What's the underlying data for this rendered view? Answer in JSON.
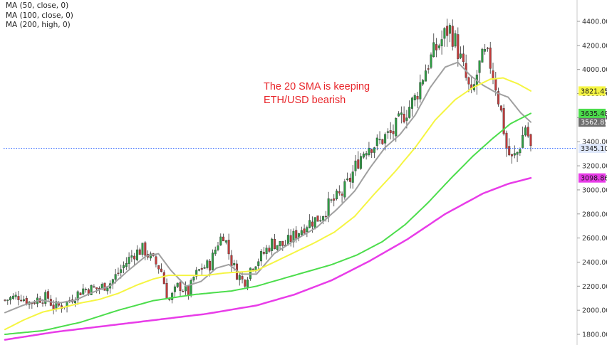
{
  "legend": [
    "MA (50, close, 0)",
    "MA (100, close, 0)",
    "MA (200, high, 0)"
  ],
  "annotation": {
    "line1": "The 20 SMA is keeping",
    "line2": "ETH/USD bearish"
  },
  "chart_data": {
    "type": "line",
    "y_axis": {
      "position": "right",
      "ylim": [
        1750,
        4500
      ],
      "ticks": [
        1800,
        2000,
        2200,
        2400,
        2600,
        2800,
        3000,
        3200,
        3400,
        3600,
        3800,
        4000,
        4200,
        4400
      ]
    },
    "grid": false,
    "price_line": {
      "value": 3345.1,
      "label": "3345.10",
      "color": "#2962ff"
    },
    "candles": {
      "up_color": "#2e9e44",
      "down_color": "#c23b3b",
      "count": 196,
      "close_path": [
        [
          0,
          2085
        ],
        [
          12,
          2120
        ],
        [
          20,
          2060
        ],
        [
          26,
          2095
        ],
        [
          34,
          2110
        ],
        [
          38,
          2030
        ],
        [
          46,
          2040
        ],
        [
          55,
          2115
        ],
        [
          62,
          2175
        ],
        [
          74,
          2180
        ],
        [
          84,
          2230
        ],
        [
          93,
          2350
        ],
        [
          102,
          2470
        ],
        [
          110,
          2510
        ],
        [
          116,
          2430
        ],
        [
          124,
          2340
        ],
        [
          130,
          2070
        ],
        [
          138,
          2210
        ],
        [
          146,
          2140
        ],
        [
          150,
          2270
        ],
        [
          156,
          2350
        ],
        [
          163,
          2380
        ],
        [
          169,
          2560
        ],
        [
          174,
          2640
        ],
        [
          179,
          2430
        ],
        [
          184,
          2310
        ],
        [
          190,
          2230
        ],
        [
          196,
          2370
        ],
        [
          204,
          2450
        ],
        [
          212,
          2560
        ],
        [
          222,
          2540
        ],
        [
          232,
          2640
        ],
        [
          240,
          2720
        ],
        [
          250,
          2770
        ],
        [
          258,
          2880
        ],
        [
          268,
          2970
        ],
        [
          274,
          3080
        ],
        [
          281,
          3250
        ],
        [
          288,
          3370
        ],
        [
          296,
          3380
        ],
        [
          302,
          3440
        ],
        [
          308,
          3470
        ],
        [
          316,
          3610
        ],
        [
          326,
          3760
        ],
        [
          334,
          4000
        ],
        [
          342,
          4160
        ],
        [
          348,
          4260
        ],
        [
          353,
          4350
        ],
        [
          358,
          4230
        ],
        [
          362,
          4090
        ],
        [
          366,
          3940
        ],
        [
          371,
          3760
        ],
        [
          376,
          4000
        ],
        [
          381,
          4120
        ],
        [
          385,
          4080
        ],
        [
          390,
          3880
        ],
        [
          395,
          3610
        ],
        [
          399,
          3330
        ],
        [
          403,
          3250
        ],
        [
          407,
          3300
        ],
        [
          411,
          3430
        ],
        [
          414,
          3540
        ],
        [
          418,
          3345
        ]
      ],
      "wick_pct": 2.5
    },
    "series": [
      {
        "key": "ma20",
        "color": "#a0a0a0",
        "width": 2,
        "label": "3562.85",
        "label_value": 3562.85,
        "points": [
          [
            0,
            1980
          ],
          [
            14,
            2040
          ],
          [
            28,
            2085
          ],
          [
            42,
            2060
          ],
          [
            55,
            2080
          ],
          [
            70,
            2150
          ],
          [
            85,
            2210
          ],
          [
            98,
            2330
          ],
          [
            112,
            2450
          ],
          [
            122,
            2470
          ],
          [
            132,
            2330
          ],
          [
            144,
            2200
          ],
          [
            156,
            2240
          ],
          [
            168,
            2350
          ],
          [
            178,
            2380
          ],
          [
            188,
            2300
          ],
          [
            200,
            2300
          ],
          [
            214,
            2470
          ],
          [
            230,
            2580
          ],
          [
            248,
            2690
          ],
          [
            264,
            2840
          ],
          [
            278,
            2990
          ],
          [
            290,
            3180
          ],
          [
            302,
            3350
          ],
          [
            314,
            3460
          ],
          [
            326,
            3620
          ],
          [
            338,
            3850
          ],
          [
            350,
            4020
          ],
          [
            360,
            4060
          ],
          [
            370,
            3950
          ],
          [
            380,
            3870
          ],
          [
            390,
            3810
          ],
          [
            400,
            3770
          ],
          [
            410,
            3640
          ],
          [
            418,
            3562.85
          ]
        ]
      },
      {
        "key": "ma50",
        "color": "#f5f542",
        "width": 2,
        "label": "3821.45",
        "label_value": 3821.45,
        "points": [
          [
            0,
            1840
          ],
          [
            15,
            1920
          ],
          [
            30,
            1985
          ],
          [
            45,
            2020
          ],
          [
            60,
            2060
          ],
          [
            75,
            2090
          ],
          [
            90,
            2140
          ],
          [
            105,
            2210
          ],
          [
            118,
            2260
          ],
          [
            130,
            2290
          ],
          [
            145,
            2290
          ],
          [
            160,
            2290
          ],
          [
            175,
            2310
          ],
          [
            190,
            2320
          ],
          [
            200,
            2330
          ],
          [
            214,
            2400
          ],
          [
            230,
            2480
          ],
          [
            246,
            2560
          ],
          [
            262,
            2650
          ],
          [
            278,
            2780
          ],
          [
            294,
            2970
          ],
          [
            310,
            3150
          ],
          [
            326,
            3350
          ],
          [
            342,
            3580
          ],
          [
            358,
            3750
          ],
          [
            372,
            3850
          ],
          [
            386,
            3920
          ],
          [
            396,
            3930
          ],
          [
            408,
            3880
          ],
          [
            418,
            3821.45
          ]
        ]
      },
      {
        "key": "ma100",
        "color": "#4cdd4c",
        "width": 2,
        "label": "3635.48",
        "label_value": 3635.48,
        "points": [
          [
            0,
            1800
          ],
          [
            30,
            1830
          ],
          [
            60,
            1900
          ],
          [
            90,
            2000
          ],
          [
            118,
            2080
          ],
          [
            150,
            2130
          ],
          [
            180,
            2160
          ],
          [
            200,
            2200
          ],
          [
            220,
            2260
          ],
          [
            240,
            2320
          ],
          [
            260,
            2380
          ],
          [
            280,
            2460
          ],
          [
            300,
            2570
          ],
          [
            318,
            2710
          ],
          [
            336,
            2890
          ],
          [
            354,
            3090
          ],
          [
            372,
            3280
          ],
          [
            388,
            3430
          ],
          [
            402,
            3550
          ],
          [
            418,
            3635.48
          ]
        ]
      },
      {
        "key": "ma200",
        "color": "#e83ce8",
        "width": 2.5,
        "label": "3098.86",
        "label_value": 3098.86,
        "points": [
          [
            0,
            1755
          ],
          [
            40,
            1820
          ],
          [
            80,
            1870
          ],
          [
            120,
            1920
          ],
          [
            160,
            1970
          ],
          [
            200,
            2040
          ],
          [
            230,
            2130
          ],
          [
            260,
            2250
          ],
          [
            290,
            2410
          ],
          [
            320,
            2590
          ],
          [
            350,
            2800
          ],
          [
            380,
            2970
          ],
          [
            400,
            3050
          ],
          [
            418,
            3098.86
          ]
        ]
      }
    ]
  }
}
